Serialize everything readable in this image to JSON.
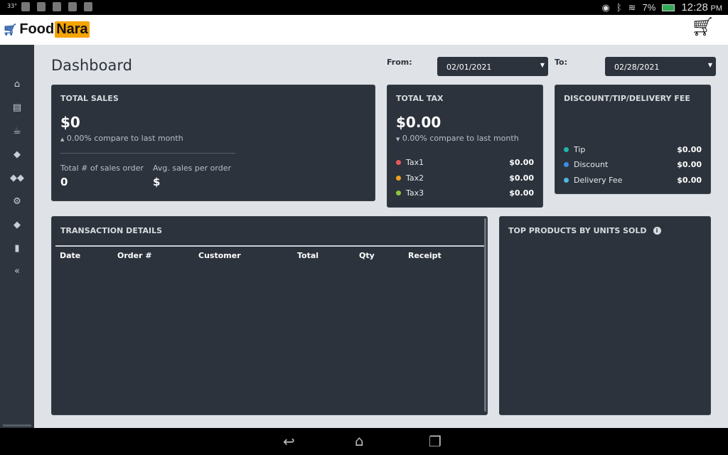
{
  "status_bar": {
    "temperature": "33°",
    "battery": "7%",
    "time": "12:28",
    "ampm": "PM"
  },
  "header": {
    "logo_part1": "Food",
    "logo_part2": "Nara",
    "cart_icon": "shopping-cart-icon"
  },
  "sidebar": {
    "items": [
      {
        "icon": "home-icon"
      },
      {
        "icon": "list-icon"
      },
      {
        "icon": "coffee-icon"
      },
      {
        "icon": "tag-icon"
      },
      {
        "icon": "tags-icon"
      },
      {
        "icon": "gear-icon"
      },
      {
        "icon": "tag-icon"
      },
      {
        "icon": "tablet-icon"
      },
      {
        "icon": "collapse-icon"
      }
    ]
  },
  "page": {
    "title": "Dashboard"
  },
  "filters": {
    "from_label": "From:",
    "from_value": "02/01/2021",
    "to_label": "To:",
    "to_value": "02/28/2021"
  },
  "total_sales": {
    "title": "TOTAL SALES",
    "amount": "$0",
    "compare": "0.00% compare to last month",
    "orders_label": "Total # of sales order",
    "orders_value": "0",
    "avg_label": "Avg. sales per order",
    "avg_value": "$"
  },
  "total_tax": {
    "title": "TOTAL TAX",
    "amount": "$0.00",
    "compare": "0.00% compare to last month",
    "items": [
      {
        "label": "Tax1",
        "value": "$0.00",
        "color": "#e85a5a"
      },
      {
        "label": "Tax2",
        "value": "$0.00",
        "color": "#f0a020"
      },
      {
        "label": "Tax3",
        "value": "$0.00",
        "color": "#8cc63f"
      }
    ]
  },
  "fees": {
    "title": "DISCOUNT/TIP/DELIVERY FEE",
    "items": [
      {
        "label": "Tip",
        "value": "$0.00",
        "color": "#1fb5a8"
      },
      {
        "label": "Discount",
        "value": "$0.00",
        "color": "#3b8ee8"
      },
      {
        "label": "Delivery Fee",
        "value": "$0.00",
        "color": "#4fb8e0"
      }
    ]
  },
  "transactions": {
    "title": "TRANSACTION DETAILS",
    "columns": [
      "Date",
      "Order #",
      "Customer",
      "Total",
      "Qty",
      "Receipt"
    ]
  },
  "top_products": {
    "title": "TOP PRODUCTS BY UNITS SOLD"
  }
}
